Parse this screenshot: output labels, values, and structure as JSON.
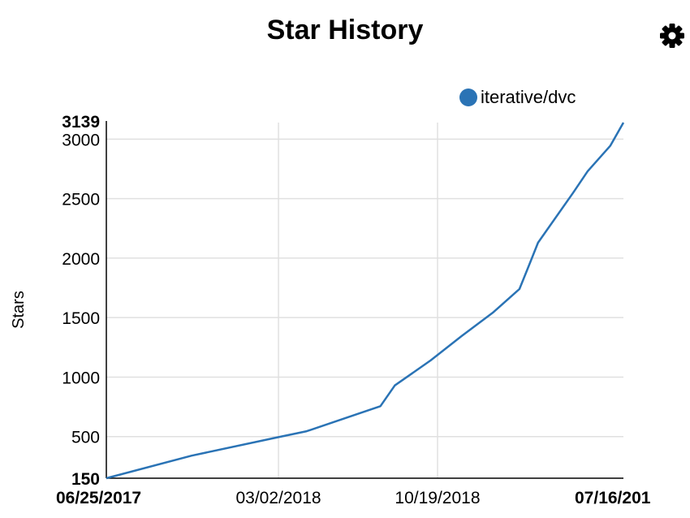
{
  "title": "Star History",
  "settings_icon": "gear-icon",
  "chart_data": {
    "type": "line",
    "title": "Star History",
    "ylabel": "Stars",
    "xlabel": "",
    "y_ticks": [
      150,
      500,
      1000,
      1500,
      2000,
      2500,
      3000,
      3139
    ],
    "y_tick_bold": [
      150,
      3139
    ],
    "ylim": [
      150,
      3139
    ],
    "x_ticks": [
      {
        "date": "2017-06-25",
        "label": "06/25/2017",
        "bold": true
      },
      {
        "date": "2018-03-02",
        "label": "03/02/2018",
        "bold": false
      },
      {
        "date": "2018-10-19",
        "label": "10/19/2018",
        "bold": false
      },
      {
        "date": "2019-07-16",
        "label": "07/16/201",
        "bold": true
      }
    ],
    "xlim": [
      "2017-06-25",
      "2019-07-16"
    ],
    "grid": true,
    "legend_position": "top-right",
    "series": [
      {
        "name": "iterative/dvc",
        "color": "#2a73b5",
        "points": [
          [
            "2017-06-25",
            150
          ],
          [
            "2017-10-27",
            340
          ],
          [
            "2018-03-02",
            495
          ],
          [
            "2018-04-12",
            545
          ],
          [
            "2018-07-28",
            755
          ],
          [
            "2018-08-18",
            930
          ],
          [
            "2018-10-09",
            1140
          ],
          [
            "2018-11-23",
            1345
          ],
          [
            "2019-01-08",
            1545
          ],
          [
            "2019-02-15",
            1740
          ],
          [
            "2019-03-02",
            1955
          ],
          [
            "2019-03-14",
            2130
          ],
          [
            "2019-05-04",
            2550
          ],
          [
            "2019-05-25",
            2730
          ],
          [
            "2019-06-27",
            2945
          ],
          [
            "2019-07-16",
            3139
          ]
        ]
      }
    ]
  }
}
